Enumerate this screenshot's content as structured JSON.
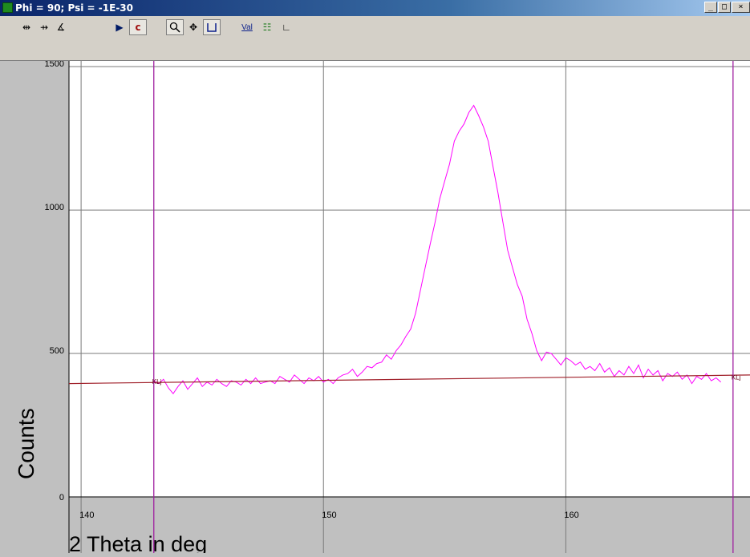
{
  "window": {
    "title": "Phi = 90; Psi = -1E-30",
    "controls": [
      "_",
      "□",
      "×"
    ]
  },
  "toolbar": {
    "items": [
      {
        "name": "h-cursor",
        "glyph": "⇹"
      },
      {
        "name": "v-cursor",
        "glyph": "⇸"
      },
      {
        "name": "angle",
        "glyph": "∡"
      },
      {
        "name": "run",
        "glyph": "▶"
      },
      {
        "name": "c",
        "glyph": "c"
      },
      {
        "name": "zoom",
        "glyph": "🔍"
      },
      {
        "name": "pan",
        "glyph": "✥"
      },
      {
        "name": "baseline",
        "glyph": "⊔"
      },
      {
        "name": "val",
        "glyph": "Val"
      },
      {
        "name": "legend",
        "glyph": "☷"
      },
      {
        "name": "axes",
        "glyph": "∟"
      }
    ]
  },
  "chart_data": {
    "type": "line",
    "xlabel": "2 Theta in deg",
    "ylabel": "Counts",
    "xlim": [
      139.5,
      167.6
    ],
    "ylim": [
      0,
      1520
    ],
    "x_ticks": [
      140,
      150,
      160
    ],
    "y_ticks": [
      0,
      500,
      1000,
      1500
    ],
    "grid": true,
    "series": [
      {
        "color": "#ff00ff",
        "x": [
          143.0,
          143.2,
          143.4,
          143.6,
          143.8,
          144.0,
          144.2,
          144.4,
          144.6,
          144.8,
          145.0,
          145.2,
          145.4,
          145.6,
          145.8,
          146.0,
          146.2,
          146.4,
          146.6,
          146.8,
          147.0,
          147.2,
          147.4,
          147.6,
          147.8,
          148.0,
          148.2,
          148.4,
          148.6,
          148.8,
          149.0,
          149.2,
          149.4,
          149.6,
          149.8,
          150.0,
          150.2,
          150.4,
          150.6,
          150.8,
          151.0,
          151.2,
          151.4,
          151.6,
          151.8,
          152.0,
          152.2,
          152.4,
          152.6,
          152.8,
          153.0,
          153.2,
          153.4,
          153.6,
          153.8,
          154.0,
          154.2,
          154.4,
          154.6,
          154.8,
          155.0,
          155.2,
          155.4,
          155.6,
          155.8,
          156.0,
          156.2,
          156.4,
          156.6,
          156.8,
          157.0,
          157.2,
          157.4,
          157.6,
          157.8,
          158.0,
          158.2,
          158.4,
          158.6,
          158.8,
          159.0,
          159.2,
          159.4,
          159.6,
          159.8,
          160.0,
          160.2,
          160.4,
          160.6,
          160.8,
          161.0,
          161.2,
          161.4,
          161.6,
          161.8,
          162.0,
          162.2,
          162.4,
          162.6,
          162.8,
          163.0,
          163.2,
          163.4,
          163.6,
          163.8,
          164.0,
          164.2,
          164.4,
          164.6,
          164.8,
          165.0,
          165.2,
          165.4,
          165.6,
          165.8,
          166.0,
          166.2,
          166.4
        ],
        "y": [
          405,
          395,
          410,
          380,
          360,
          385,
          405,
          375,
          395,
          415,
          385,
          400,
          390,
          410,
          395,
          385,
          405,
          400,
          390,
          410,
          395,
          415,
          395,
          400,
          405,
          395,
          420,
          410,
          400,
          425,
          410,
          395,
          415,
          405,
          420,
          400,
          410,
          395,
          415,
          425,
          430,
          445,
          420,
          435,
          455,
          450,
          465,
          470,
          495,
          480,
          510,
          530,
          560,
          585,
          640,
          720,
          800,
          880,
          955,
          1040,
          1100,
          1160,
          1240,
          1275,
          1300,
          1340,
          1365,
          1330,
          1290,
          1240,
          1150,
          1060,
          960,
          860,
          800,
          740,
          700,
          620,
          570,
          510,
          475,
          505,
          500,
          480,
          460,
          485,
          475,
          460,
          470,
          445,
          455,
          440,
          465,
          435,
          450,
          420,
          440,
          425,
          455,
          430,
          460,
          415,
          445,
          425,
          440,
          405,
          430,
          420,
          435,
          410,
          425,
          395,
          420,
          410,
          430,
          405,
          415,
          400
        ]
      },
      {
        "color": "#a0202a",
        "x": [
          139.5,
          167.6
        ],
        "y": [
          395,
          425
        ]
      }
    ],
    "cursors_x": [
      143.0,
      166.9
    ],
    "cursor_labels": [
      {
        "x": 143.0,
        "y": 405,
        "text": "KLj"
      },
      {
        "x": 166.9,
        "y": 420,
        "text": "KLj"
      }
    ]
  }
}
